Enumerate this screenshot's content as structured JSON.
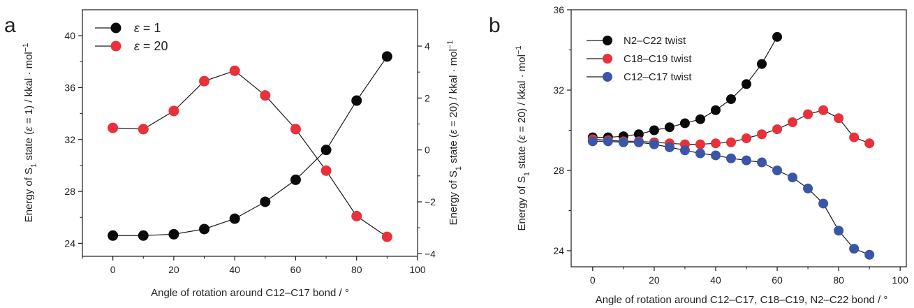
{
  "figure": {
    "colors": {
      "black": "#0a0a0a",
      "red": "#e8313a",
      "blue": "#3b56a8",
      "line": "#1a1a1a"
    }
  },
  "chart_data": [
    {
      "id": "a",
      "panel_label": "a",
      "type": "scatter",
      "title": "",
      "xlabel": "Angle of rotation around C12–C17 bond / °",
      "ylabel_left_prefix": "Energy of S",
      "ylabel_left_sub": "1",
      "ylabel_left_mid": " state (",
      "ylabel_left_eps": "ε",
      "ylabel_left_suffix": " = 1) / kkal · mol",
      "ylabel_left_sup": "−1",
      "ylabel_right_prefix": "Energy of S",
      "ylabel_right_sub": "1",
      "ylabel_right_mid": " state (",
      "ylabel_right_eps": "ε",
      "ylabel_right_suffix": " = 20) / kkal · mol",
      "ylabel_right_sup": "−1",
      "xlim": [
        -10,
        100
      ],
      "ylim_left": [
        23,
        42
      ],
      "ylim_right": [
        -4.1,
        5.4
      ],
      "xticks": [
        0,
        20,
        40,
        60,
        80,
        100
      ],
      "yticks_left": [
        24,
        28,
        32,
        36,
        40
      ],
      "yticks_right": [
        -4,
        -2,
        0,
        2,
        4
      ],
      "legend_position": "top-left",
      "series": [
        {
          "name_prefix": "ε",
          "name_suffix": " = 1",
          "color": "#0a0a0a",
          "axis": "left",
          "x": [
            0,
            10,
            20,
            30,
            40,
            50,
            60,
            70,
            80,
            90
          ],
          "y": [
            24.6,
            24.6,
            24.7,
            25.1,
            25.9,
            27.2,
            28.9,
            31.2,
            35.0,
            38.4
          ]
        },
        {
          "name_prefix": "ε",
          "name_suffix": " = 20",
          "color": "#e8313a",
          "axis": "right",
          "x": [
            0,
            10,
            20,
            30,
            40,
            50,
            60,
            70,
            80,
            90
          ],
          "y": [
            0.85,
            0.8,
            1.5,
            2.65,
            3.05,
            2.1,
            0.8,
            -0.8,
            -2.55,
            -3.35
          ]
        }
      ]
    },
    {
      "id": "b",
      "panel_label": "b",
      "type": "scatter",
      "title": "",
      "xlabel": "Angle of rotation around C12–C17, C18–C19, N2–C22 bond / °",
      "ylabel_prefix": "Energy of S",
      "ylabel_sub": "1",
      "ylabel_mid": " state (",
      "ylabel_eps": "ε",
      "ylabel_suffix": " = 20) / kkal · mol",
      "ylabel_sup": "−1",
      "xlim": [
        -7,
        102
      ],
      "ylim": [
        23.2,
        36
      ],
      "xticks": [
        0,
        20,
        40,
        60,
        80,
        100
      ],
      "yticks": [
        24,
        28,
        32,
        36
      ],
      "legend_position": "top-left",
      "series": [
        {
          "name": "N2–C22 twist",
          "color": "#0a0a0a",
          "x": [
            0,
            5,
            10,
            15,
            20,
            25,
            30,
            35,
            40,
            45,
            50,
            55,
            60
          ],
          "y": [
            29.65,
            29.65,
            29.7,
            29.8,
            30.0,
            30.15,
            30.35,
            30.55,
            31.0,
            31.55,
            32.3,
            33.3,
            34.65
          ]
        },
        {
          "name": "C18–C19 twist",
          "color": "#e8313a",
          "x": [
            0,
            5,
            10,
            15,
            20,
            25,
            30,
            35,
            40,
            45,
            50,
            55,
            60,
            65,
            70,
            75,
            80,
            85,
            90
          ],
          "y": [
            29.55,
            29.5,
            29.45,
            29.45,
            29.4,
            29.35,
            29.3,
            29.3,
            29.35,
            29.4,
            29.6,
            29.8,
            30.05,
            30.4,
            30.8,
            31.0,
            30.6,
            29.65,
            29.35
          ]
        },
        {
          "name": "C12–C17 twist",
          "color": "#3b56a8",
          "x": [
            0,
            5,
            10,
            15,
            20,
            25,
            30,
            35,
            40,
            45,
            50,
            55,
            60,
            65,
            70,
            75,
            80,
            85,
            90
          ],
          "y": [
            29.45,
            29.45,
            29.4,
            29.4,
            29.3,
            29.15,
            29.0,
            28.85,
            28.75,
            28.6,
            28.5,
            28.4,
            28.0,
            27.65,
            27.1,
            26.35,
            25.0,
            24.1,
            23.8
          ]
        }
      ]
    }
  ]
}
